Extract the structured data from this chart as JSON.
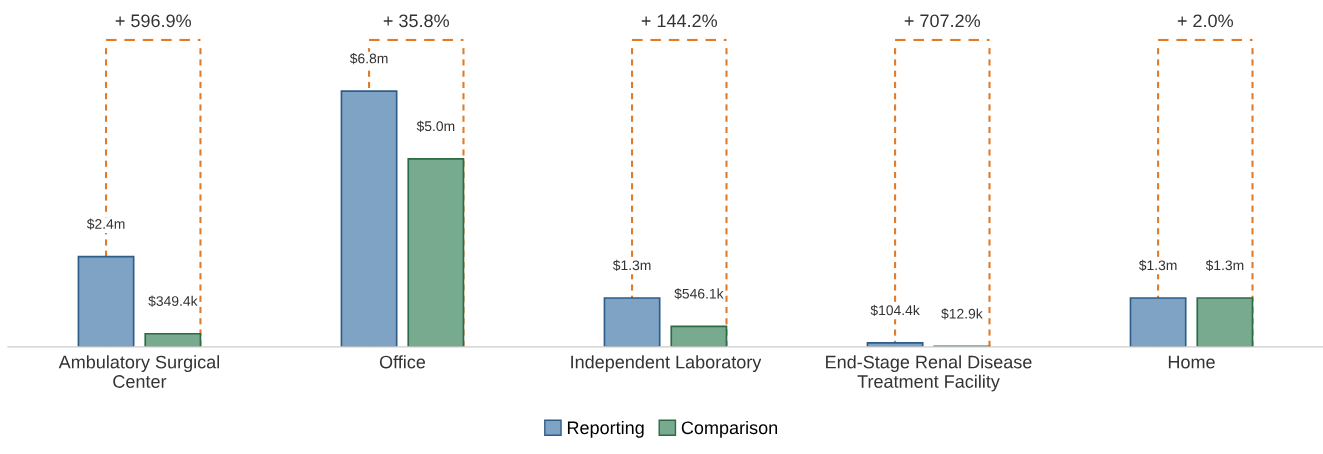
{
  "chart_data": {
    "type": "bar",
    "categories": [
      "Ambulatory Surgical\nCenter",
      "Office",
      "Independent Laboratory",
      "End-Stage Renal Disease\nTreatment Facility",
      "Home"
    ],
    "series": [
      {
        "name": "Reporting",
        "color": "#7ea3c4",
        "values": [
          2400000,
          6800000,
          1300000,
          104400,
          1300000
        ],
        "value_labels": [
          "$2.4m",
          "$6.8m",
          "$1.3m",
          "$104.4k",
          "$1.3m"
        ]
      },
      {
        "name": "Comparison",
        "color": "#77aa8e",
        "values": [
          349400,
          5000000,
          546100,
          12900,
          1300000
        ],
        "value_labels": [
          "$349.4k",
          "$5.0m",
          "$546.1k",
          "$12.9k",
          "$1.3m"
        ]
      }
    ],
    "annotations": [
      "+ 596.9%",
      "+ 35.8%",
      "+ 144.2%",
      "+ 707.2%",
      "+ 2.0%"
    ],
    "legend": "bottom",
    "grid": false
  }
}
